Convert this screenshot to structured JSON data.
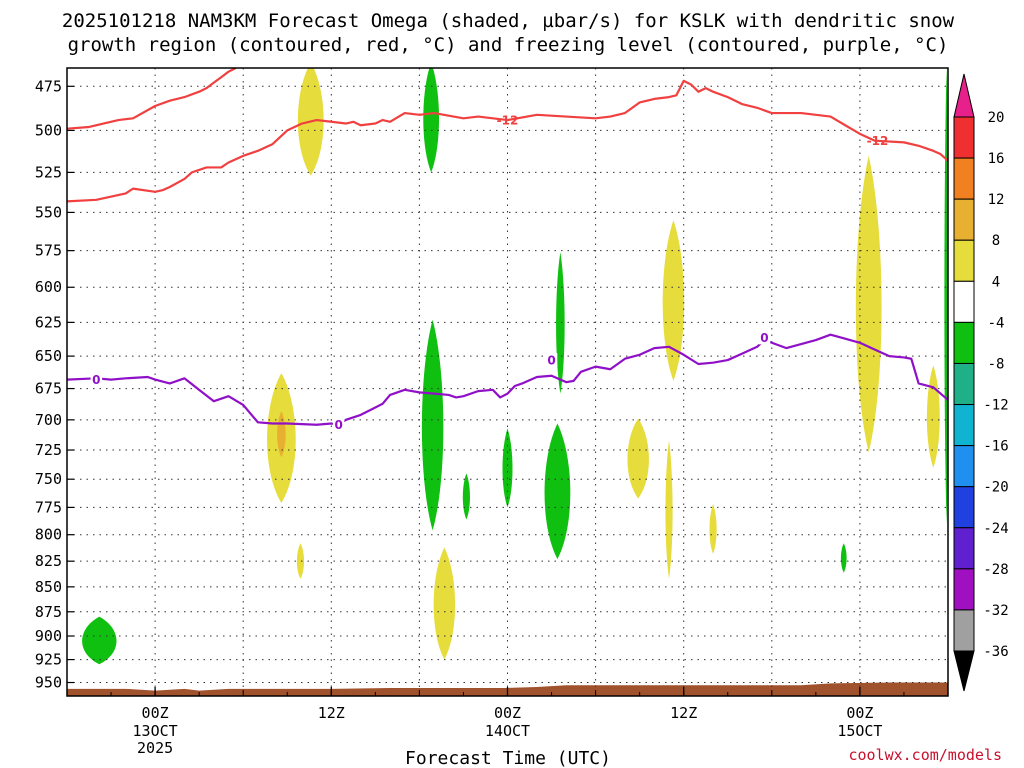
{
  "chart_data": {
    "type": "time-height cross section",
    "title_line1": "2025101218 NAM3KM Forecast Omega (shaded, µbar/s) for KSLK with dendritic snow",
    "title_line2": "growth region (contoured, red, °C) and freezing level (contoured, purple, °C)",
    "xlabel": "Forecast Time (UTC)",
    "credit": "coolwx.com/models",
    "forecast_start_hour": -6,
    "forecast_end_hour": 54,
    "y_range_hpa": [
      465,
      965
    ],
    "y_levels": [
      475,
      500,
      525,
      550,
      575,
      600,
      625,
      650,
      675,
      700,
      725,
      750,
      775,
      800,
      825,
      850,
      875,
      900,
      925,
      950
    ],
    "y_tick_labels": [
      "475",
      "500",
      "525",
      "550",
      "575",
      "600",
      "625",
      "650",
      "675",
      "700",
      "725",
      "750",
      "775",
      "800",
      "825",
      "850",
      "875",
      "900",
      "925",
      "950"
    ],
    "x_ticks": [
      {
        "hour": 0,
        "label": "00Z",
        "sub1": "13OCT",
        "sub2": "2025"
      },
      {
        "hour": 12,
        "label": "12Z",
        "sub1": "",
        "sub2": ""
      },
      {
        "hour": 24,
        "label": "00Z",
        "sub1": "14OCT",
        "sub2": ""
      },
      {
        "hour": 36,
        "label": "12Z",
        "sub1": "",
        "sub2": ""
      },
      {
        "hour": 48,
        "label": "00Z",
        "sub1": "15OCT",
        "sub2": ""
      }
    ],
    "colorbar": {
      "labels": [
        "20",
        "16",
        "12",
        "8",
        "4",
        "-4",
        "-8",
        "-12",
        "-16",
        "-20",
        "-24",
        "-28",
        "-32",
        "-36"
      ],
      "bins": [
        {
          "range": [
            16,
            20
          ],
          "color": "#f03030"
        },
        {
          "range": [
            12,
            16
          ],
          "color": "#f08020"
        },
        {
          "range": [
            8,
            12
          ],
          "color": "#e8b030"
        },
        {
          "range": [
            4,
            8
          ],
          "color": "#e6dc3c"
        },
        {
          "range": [
            -4,
            4
          ],
          "color": "#ffffff"
        },
        {
          "range": [
            -8,
            -4
          ],
          "color": "#10c010"
        },
        {
          "range": [
            -12,
            -8
          ],
          "color": "#20b088"
        },
        {
          "range": [
            -16,
            -12
          ],
          "color": "#10b4d0"
        },
        {
          "range": [
            -20,
            -16
          ],
          "color": "#2090f0"
        },
        {
          "range": [
            -24,
            -20
          ],
          "color": "#2040e0"
        },
        {
          "range": [
            -28,
            -24
          ],
          "color": "#6020d0"
        },
        {
          "range": [
            -32,
            -28
          ],
          "color": "#a010c0"
        },
        {
          "range": [
            -36,
            -32
          ],
          "color": "#a0a0a0"
        }
      ],
      "top_triangle_color": "#e8208c",
      "bottom_triangle_color": "#000000"
    },
    "contours": [
      {
        "name": "dgz-upper-12C",
        "value": -12,
        "color": "#f04040",
        "label": "-12",
        "label_points": [
          {
            "hour": 24,
            "hpa": 494
          },
          {
            "hour": 49.2,
            "hpa": 506
          }
        ],
        "points": [
          [
            -6,
            499
          ],
          [
            -4.5,
            498
          ],
          [
            -2.5,
            494
          ],
          [
            -1.5,
            493
          ],
          [
            0,
            486
          ],
          [
            1,
            483
          ],
          [
            2,
            481
          ],
          [
            3,
            478
          ],
          [
            3.5,
            476
          ],
          [
            4,
            473
          ],
          [
            4.5,
            470
          ],
          [
            5,
            467
          ],
          [
            5.5,
            465
          ]
        ]
      },
      {
        "name": "dgz-lower-12C",
        "value": -12,
        "color": "#f04040",
        "label": "-12",
        "points": [
          [
            -6,
            543
          ],
          [
            -4,
            542
          ],
          [
            -2,
            538
          ],
          [
            -1.5,
            535
          ],
          [
            0,
            537
          ],
          [
            0.5,
            536
          ],
          [
            1,
            534
          ],
          [
            2,
            529
          ],
          [
            2.5,
            525
          ],
          [
            3.5,
            522
          ],
          [
            4.5,
            522
          ],
          [
            5,
            519
          ],
          [
            6,
            515
          ],
          [
            7,
            512
          ],
          [
            8,
            508
          ],
          [
            9,
            500
          ],
          [
            10,
            496
          ],
          [
            11,
            494
          ],
          [
            12,
            495
          ],
          [
            13,
            496
          ],
          [
            13.5,
            495
          ],
          [
            14,
            497
          ],
          [
            15,
            496
          ],
          [
            15.5,
            494
          ],
          [
            16,
            495
          ],
          [
            17,
            490
          ],
          [
            18,
            491
          ],
          [
            19,
            490
          ],
          [
            21,
            493
          ],
          [
            22,
            492
          ],
          [
            23,
            493
          ],
          [
            24,
            494
          ],
          [
            26,
            491
          ],
          [
            28,
            492
          ],
          [
            30,
            493
          ],
          [
            31,
            492
          ],
          [
            32,
            490
          ],
          [
            33,
            484
          ],
          [
            34,
            482
          ],
          [
            35,
            481
          ],
          [
            35.5,
            480
          ],
          [
            36,
            472
          ],
          [
            36.5,
            474
          ],
          [
            37,
            478
          ],
          [
            37.5,
            476
          ],
          [
            38,
            478
          ],
          [
            39,
            481
          ],
          [
            40,
            485
          ],
          [
            41,
            487
          ],
          [
            42,
            490
          ],
          [
            44,
            490
          ],
          [
            45,
            491
          ],
          [
            46,
            492
          ],
          [
            47,
            497
          ],
          [
            48,
            502
          ],
          [
            49,
            506
          ],
          [
            51,
            507
          ],
          [
            52,
            509
          ],
          [
            53,
            512
          ],
          [
            53.5,
            514
          ],
          [
            54,
            518
          ]
        ]
      },
      {
        "name": "freezing-level-0C",
        "value": 0,
        "color": "#9010c8",
        "label": "0",
        "label_points": [
          {
            "hour": -4,
            "hpa": 668
          },
          {
            "hour": 12.5,
            "hpa": 704
          },
          {
            "hour": 27,
            "hpa": 653
          },
          {
            "hour": 41.5,
            "hpa": 636
          }
        ],
        "points": [
          [
            -6,
            668
          ],
          [
            -4,
            667
          ],
          [
            -3,
            668
          ],
          [
            -2,
            667
          ],
          [
            -0.5,
            666
          ],
          [
            0,
            668
          ],
          [
            1,
            671
          ],
          [
            2,
            667
          ],
          [
            3,
            676
          ],
          [
            4,
            685
          ],
          [
            5,
            681
          ],
          [
            6,
            688
          ],
          [
            7,
            702
          ],
          [
            8,
            703
          ],
          [
            9,
            703
          ],
          [
            11,
            704
          ],
          [
            12,
            703
          ],
          [
            12.5,
            704
          ],
          [
            13,
            700
          ],
          [
            14,
            696
          ],
          [
            15,
            690
          ],
          [
            15.5,
            687
          ],
          [
            16,
            680
          ],
          [
            17,
            676
          ],
          [
            18,
            678
          ],
          [
            19,
            679
          ],
          [
            20,
            680
          ],
          [
            20.5,
            682
          ],
          [
            21,
            681
          ],
          [
            22,
            677
          ],
          [
            23,
            676
          ],
          [
            23.5,
            682
          ],
          [
            24,
            679
          ],
          [
            24.5,
            673
          ],
          [
            25,
            671
          ],
          [
            26,
            666
          ],
          [
            27,
            665
          ],
          [
            28,
            670
          ],
          [
            28.5,
            669
          ],
          [
            29,
            662
          ],
          [
            30,
            658
          ],
          [
            31,
            660
          ],
          [
            32,
            652
          ],
          [
            33,
            649
          ],
          [
            34,
            644
          ],
          [
            35,
            643
          ],
          [
            36,
            649
          ],
          [
            37,
            656
          ],
          [
            38,
            655
          ],
          [
            39,
            653
          ],
          [
            40,
            648
          ],
          [
            41,
            643
          ],
          [
            41.5,
            638
          ],
          [
            42,
            640
          ],
          [
            43,
            644
          ],
          [
            44,
            641
          ],
          [
            45,
            638
          ],
          [
            46,
            634
          ],
          [
            47,
            637
          ],
          [
            48,
            640
          ],
          [
            49,
            645
          ],
          [
            50,
            650
          ],
          [
            51,
            651
          ],
          [
            51.5,
            652
          ],
          [
            52,
            671
          ],
          [
            53,
            674
          ],
          [
            54,
            684
          ]
        ]
      }
    ],
    "omega_features": [
      {
        "sign": "neg",
        "value": -6,
        "hour": -3.8,
        "top_hpa": 880,
        "bottom_hpa": 930,
        "half_width_hours": 1.2,
        "color": "#10c010"
      },
      {
        "sign": "pos",
        "value": 6,
        "hour": 8.6,
        "top_hpa": 663,
        "bottom_hpa": 771,
        "half_width_hours": 1.0,
        "color": "#e6dc3c"
      },
      {
        "sign": "pos",
        "value": 9,
        "hour": 8.6,
        "top_hpa": 693,
        "bottom_hpa": 731,
        "half_width_hours": 0.3,
        "color": "#e8b030"
      },
      {
        "sign": "pos",
        "value": 6,
        "hour": 10.6,
        "top_hpa": 462,
        "bottom_hpa": 527,
        "half_width_hours": 0.9,
        "color": "#e6dc3c"
      },
      {
        "sign": "pos",
        "value": 5,
        "hour": 9.9,
        "top_hpa": 808,
        "bottom_hpa": 842,
        "half_width_hours": 0.25,
        "color": "#e6dc3c"
      },
      {
        "sign": "neg",
        "value": -6,
        "hour": 18.8,
        "top_hpa": 462,
        "bottom_hpa": 525,
        "half_width_hours": 0.55,
        "color": "#10c010"
      },
      {
        "sign": "neg",
        "value": -7,
        "hour": 18.9,
        "top_hpa": 623,
        "bottom_hpa": 796,
        "half_width_hours": 0.75,
        "color": "#10c010"
      },
      {
        "sign": "pos",
        "value": 6,
        "hour": 19.7,
        "top_hpa": 812,
        "bottom_hpa": 925,
        "half_width_hours": 0.75,
        "color": "#e6dc3c"
      },
      {
        "sign": "neg",
        "value": -5,
        "hour": 21.2,
        "top_hpa": 745,
        "bottom_hpa": 786,
        "half_width_hours": 0.25,
        "color": "#10c010"
      },
      {
        "sign": "neg",
        "value": -5,
        "hour": 24.0,
        "top_hpa": 707,
        "bottom_hpa": 775,
        "half_width_hours": 0.35,
        "color": "#10c010"
      },
      {
        "sign": "neg",
        "value": -6,
        "hour": 27.6,
        "top_hpa": 576,
        "bottom_hpa": 679,
        "half_width_hours": 0.3,
        "color": "#10c010"
      },
      {
        "sign": "neg",
        "value": -7,
        "hour": 27.4,
        "top_hpa": 703,
        "bottom_hpa": 823,
        "half_width_hours": 0.9,
        "color": "#10c010"
      },
      {
        "sign": "pos",
        "value": 5,
        "hour": 32.9,
        "top_hpa": 699,
        "bottom_hpa": 767,
        "half_width_hours": 0.75,
        "color": "#e6dc3c"
      },
      {
        "sign": "pos",
        "value": 6,
        "hour": 35.3,
        "top_hpa": 555,
        "bottom_hpa": 669,
        "half_width_hours": 0.75,
        "color": "#e6dc3c"
      },
      {
        "sign": "pos",
        "value": 5,
        "hour": 35.0,
        "top_hpa": 717,
        "bottom_hpa": 842,
        "half_width_hours": 0.25,
        "color": "#e6dc3c"
      },
      {
        "sign": "pos",
        "value": 5,
        "hour": 38.0,
        "top_hpa": 772,
        "bottom_hpa": 818,
        "half_width_hours": 0.25,
        "color": "#e6dc3c"
      },
      {
        "sign": "neg",
        "value": -5,
        "hour": 46.9,
        "top_hpa": 808,
        "bottom_hpa": 836,
        "half_width_hours": 0.2,
        "color": "#10c010"
      },
      {
        "sign": "pos",
        "value": 6,
        "hour": 48.6,
        "top_hpa": 515,
        "bottom_hpa": 727,
        "half_width_hours": 0.9,
        "color": "#e6dc3c"
      },
      {
        "sign": "pos",
        "value": 5,
        "hour": 53.0,
        "top_hpa": 657,
        "bottom_hpa": 740,
        "half_width_hours": 0.45,
        "color": "#e6dc3c"
      },
      {
        "sign": "neg",
        "value": -6,
        "hour": 53.9,
        "top_hpa": 465,
        "bottom_hpa": 790,
        "half_width_hours": 0.15,
        "color": "#10c010"
      }
    ],
    "terrain": {
      "color": "#a0522d",
      "points": [
        [
          -6,
          957
        ],
        [
          -2,
          957
        ],
        [
          0,
          959
        ],
        [
          2,
          957
        ],
        [
          3,
          959
        ],
        [
          5,
          957
        ],
        [
          12,
          957
        ],
        [
          16,
          956
        ],
        [
          24,
          956
        ],
        [
          26,
          955
        ],
        [
          28,
          953
        ],
        [
          34,
          953
        ],
        [
          40,
          953
        ],
        [
          44,
          953
        ],
        [
          46,
          951
        ],
        [
          50,
          950
        ],
        [
          54,
          950
        ]
      ]
    }
  }
}
